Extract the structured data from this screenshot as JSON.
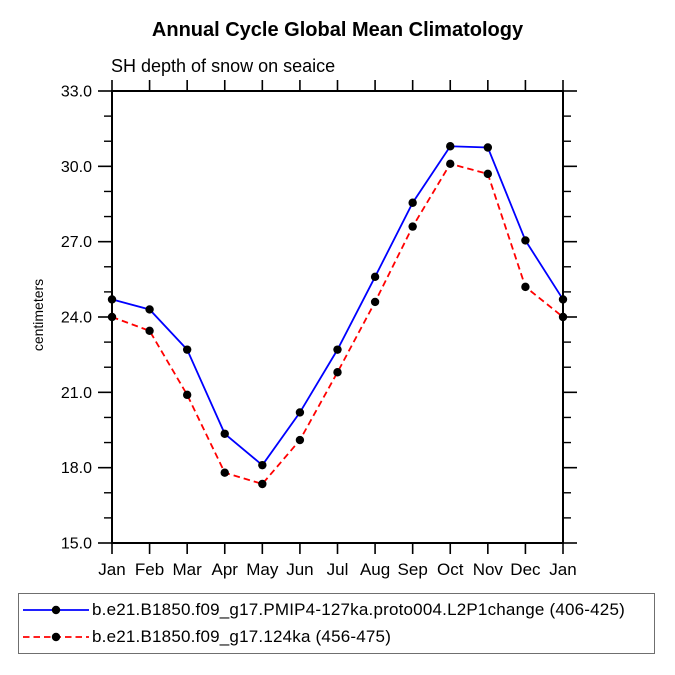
{
  "title": "Annual Cycle Global Mean Climatology",
  "subtitle": "SH depth of snow on seaice",
  "chart_data": {
    "type": "line",
    "categories": [
      "Jan",
      "Feb",
      "Mar",
      "Apr",
      "May",
      "Jun",
      "Jul",
      "Aug",
      "Sep",
      "Oct",
      "Nov",
      "Dec",
      "Jan"
    ],
    "xlabel": "",
    "ylabel": "centimeters",
    "ylim": [
      15.0,
      33.0
    ],
    "y_major_ticks": [
      15.0,
      18.0,
      21.0,
      24.0,
      27.0,
      30.0,
      33.0
    ],
    "y_minor_step": 1.0,
    "grid": false,
    "legend_position": "bottom-left",
    "series": [
      {
        "name": "b.e21.B1850.f09_g17.PMIP4-127ka.proto004.L2P1change (406-425)",
        "color": "#0000ff",
        "style": "solid",
        "marker": "circle",
        "marker_color": "#000000",
        "values": [
          24.7,
          24.3,
          22.7,
          19.35,
          18.1,
          20.2,
          22.7,
          25.6,
          28.55,
          30.8,
          30.75,
          27.05,
          24.7
        ]
      },
      {
        "name": "b.e21.B1850.f09_g17.124ka (456-475)",
        "color": "#ff0000",
        "style": "dashed",
        "marker": "circle",
        "marker_color": "#000000",
        "values": [
          24.0,
          23.45,
          20.9,
          17.8,
          17.35,
          19.1,
          21.8,
          24.6,
          27.6,
          30.1,
          29.7,
          25.2,
          24.0
        ]
      }
    ]
  },
  "colors": {
    "axis": "#000000",
    "legend_border": "#6f6f6f",
    "background": "#ffffff"
  }
}
